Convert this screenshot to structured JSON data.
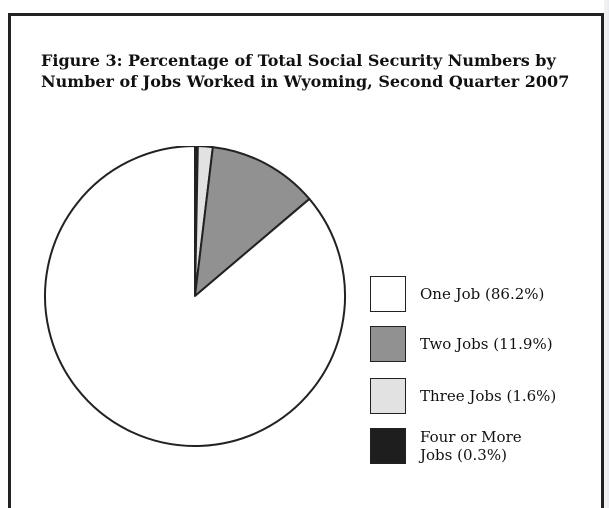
{
  "chart_data": {
    "type": "pie",
    "title": "Figure 3: Percentage of Total Social Security Numbers by Number of Jobs Worked in Wyoming, Second Quarter 2007",
    "categories": [
      "One Job",
      "Two Jobs",
      "Three Jobs",
      "Four or More Jobs"
    ],
    "values": [
      86.2,
      11.9,
      1.6,
      0.3
    ],
    "colors": [
      "#ffffff",
      "#919191",
      "#e2e2e2",
      "#1e1e1e"
    ],
    "legend_labels": [
      "One Job (86.2%)",
      "Two Jobs (11.9%)",
      "Three Jobs (1.6%)",
      "Four or More\nJobs (0.3%)"
    ],
    "legend_position": "right"
  }
}
